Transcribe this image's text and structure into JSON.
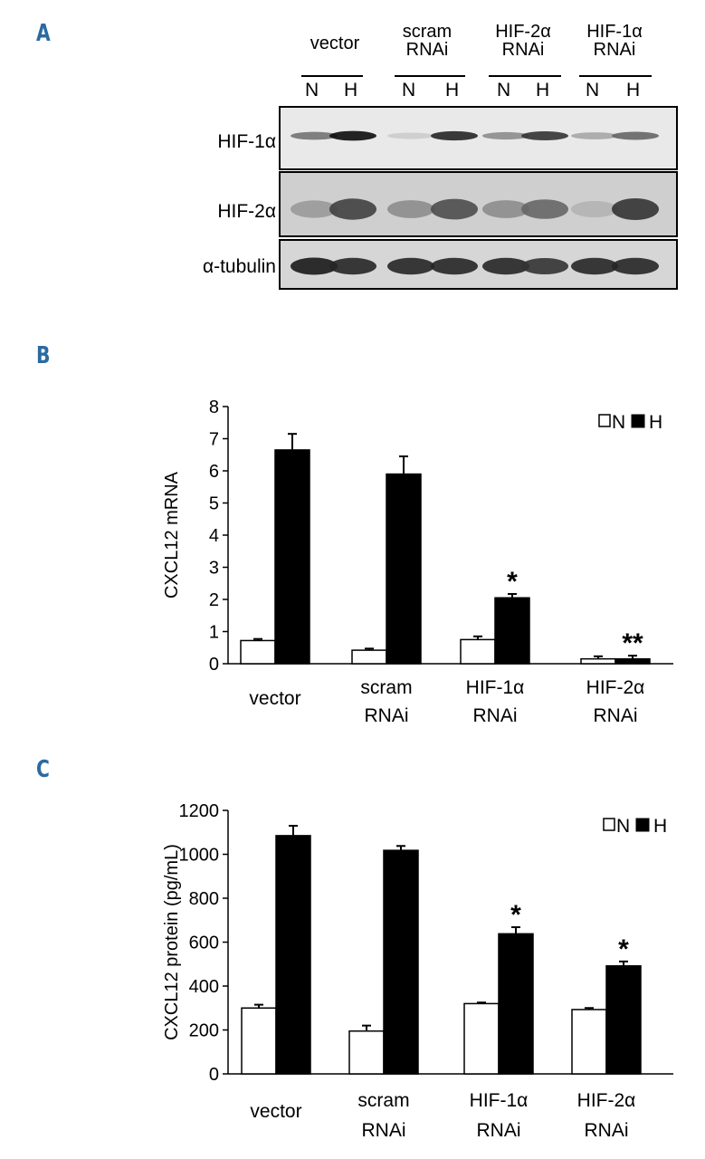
{
  "panels": {
    "a": "A",
    "b": "B",
    "c": "C"
  },
  "blot": {
    "groups": [
      {
        "line1": "vector",
        "line2": ""
      },
      {
        "line1": "scram",
        "line2": "RNAi"
      },
      {
        "line1": "HIF-2α",
        "line2": "RNAi"
      },
      {
        "line1": "HIF-1α",
        "line2": "RNAi"
      }
    ],
    "lanes": [
      "N",
      "H",
      "N",
      "H",
      "N",
      "H",
      "N",
      "H"
    ],
    "rows": [
      {
        "label": "HIF-1α",
        "intensity": [
          0.55,
          0.95,
          0.2,
          0.85,
          0.45,
          0.8,
          0.35,
          0.6
        ]
      },
      {
        "label": "HIF-2α",
        "intensity": [
          0.4,
          0.75,
          0.45,
          0.7,
          0.45,
          0.6,
          0.3,
          0.8
        ]
      },
      {
        "label": "α-tubulin",
        "intensity": [
          0.9,
          0.85,
          0.85,
          0.85,
          0.85,
          0.8,
          0.85,
          0.85
        ]
      }
    ]
  },
  "chart_data": [
    {
      "type": "bar",
      "panel": "B",
      "ylabel": "CXCL12 mRNA",
      "ylim": [
        0,
        8
      ],
      "yticks": [
        "0",
        "1",
        "2",
        "3",
        "4",
        "5",
        "6",
        "7",
        "8"
      ],
      "categories": [
        {
          "line1": "vector",
          "line2": ""
        },
        {
          "line1": "scram",
          "line2": "RNAi"
        },
        {
          "line1": "HIF-1α",
          "line2": "RNAi"
        },
        {
          "line1": "HIF-2α",
          "line2": "RNAi"
        }
      ],
      "series": [
        {
          "name": "N",
          "fill": "#ffffff",
          "values": [
            0.72,
            0.42,
            0.75,
            0.15
          ],
          "errors": [
            0.05,
            0.05,
            0.1,
            0.08
          ]
        },
        {
          "name": "H",
          "fill": "#000000",
          "values": [
            6.65,
            5.9,
            2.05,
            0.15
          ],
          "errors": [
            0.5,
            0.55,
            0.12,
            0.1
          ]
        }
      ],
      "annotations": [
        "",
        "",
        "*",
        "**"
      ],
      "legend": "top-right"
    },
    {
      "type": "bar",
      "panel": "C",
      "ylabel": "CXCL12 protein (pg/mL)",
      "ylim": [
        0,
        1200
      ],
      "yticks": [
        "0",
        "200",
        "400",
        "600",
        "800",
        "1000",
        "1200"
      ],
      "categories": [
        {
          "line1": "vector",
          "line2": ""
        },
        {
          "line1": "scram",
          "line2": "RNAi"
        },
        {
          "line1": "HIF-1α",
          "line2": "RNAi"
        },
        {
          "line1": "HIF-2α",
          "line2": "RNAi"
        }
      ],
      "series": [
        {
          "name": "N",
          "fill": "#ffffff",
          "values": [
            300,
            195,
            320,
            293
          ],
          "errors": [
            15,
            25,
            5,
            7
          ]
        },
        {
          "name": "H",
          "fill": "#000000",
          "values": [
            1085,
            1018,
            638,
            492
          ],
          "errors": [
            45,
            20,
            30,
            20
          ]
        }
      ],
      "annotations": [
        "",
        "",
        "*",
        "*"
      ],
      "legend": "top-right"
    }
  ]
}
